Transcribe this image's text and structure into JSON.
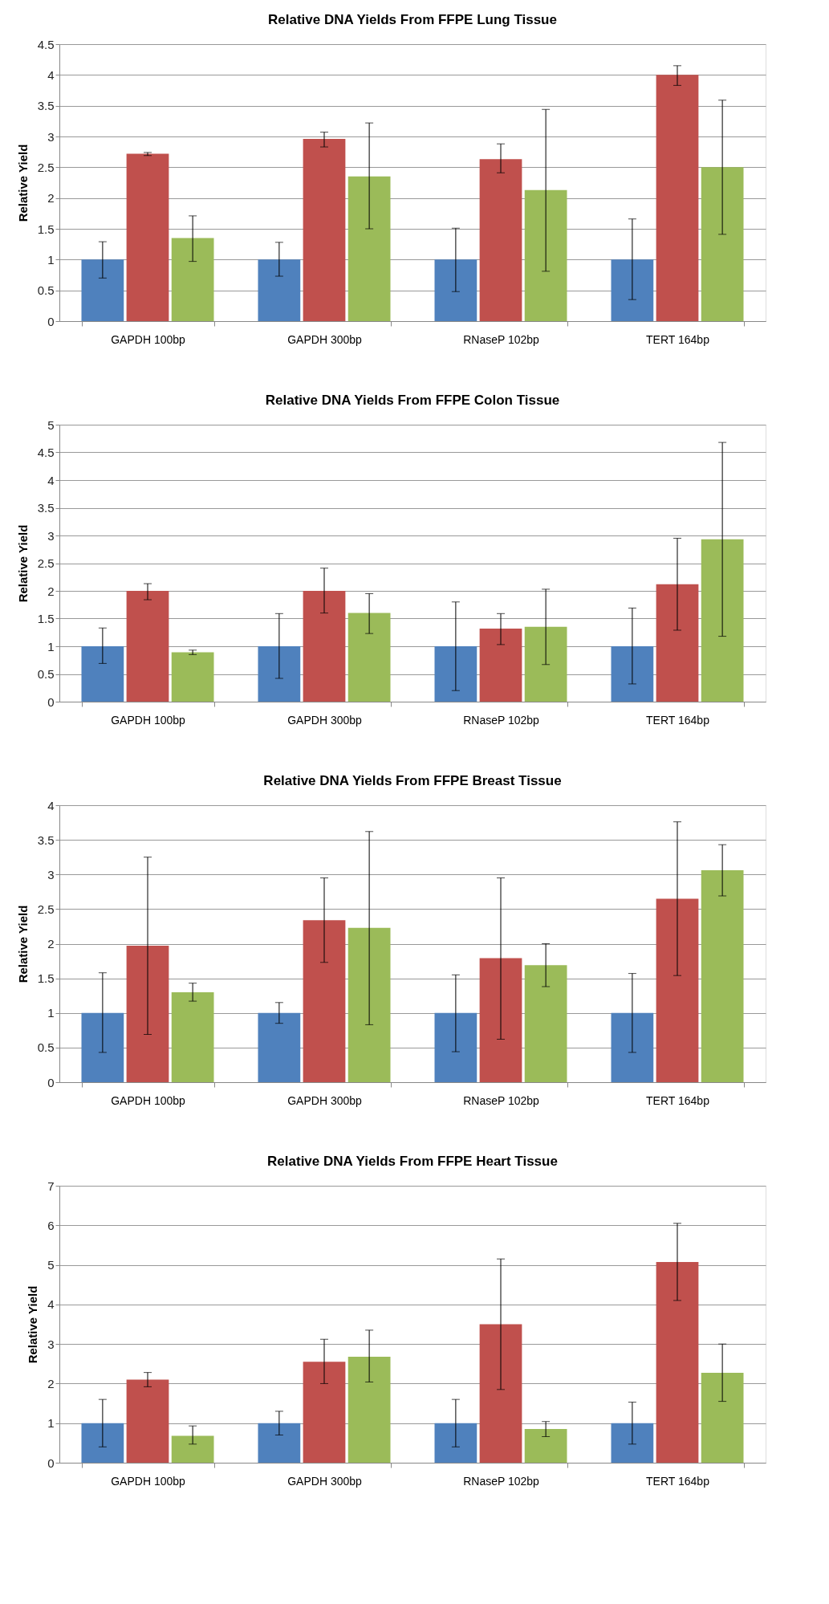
{
  "chart_data": [
    {
      "type": "bar",
      "title": "Relative DNA Yields From FFPE Lung Tissue",
      "ylabel": "Relative Yield",
      "categories": [
        "GAPDH 100bp",
        "GAPDH 300bp",
        "RNaseP 102bp",
        "TERT 164bp"
      ],
      "ylim": [
        0,
        4.5
      ],
      "yticks": [
        0,
        0.5,
        1,
        1.5,
        2,
        2.5,
        3,
        3.5,
        4,
        4.5
      ],
      "grid": "y",
      "series": [
        {
          "color": "#4f81bd",
          "values": [
            1,
            1,
            1,
            1
          ],
          "errors": [
            [
              0.7,
              1.29
            ],
            [
              0.73,
              1.28
            ],
            [
              0.48,
              1.51
            ],
            [
              0.35,
              1.66
            ]
          ]
        },
        {
          "color": "#c0504d",
          "values": [
            2.72,
            2.96,
            2.63,
            4.0
          ],
          "errors": [
            [
              2.69,
              2.74
            ],
            [
              2.83,
              3.07
            ],
            [
              2.41,
              2.88
            ],
            [
              3.83,
              4.15
            ]
          ]
        },
        {
          "color": "#9bbb59",
          "values": [
            1.35,
            2.35,
            2.13,
            2.5
          ],
          "errors": [
            [
              0.97,
              1.71
            ],
            [
              1.5,
              3.22
            ],
            [
              0.81,
              3.44
            ],
            [
              1.41,
              3.59
            ]
          ]
        }
      ]
    },
    {
      "type": "bar",
      "title": "Relative DNA Yields From FFPE Colon Tissue",
      "ylabel": "Relative Yield",
      "categories": [
        "GAPDH 100bp",
        "GAPDH 300bp",
        "RNaseP 102bp",
        "TERT 164bp"
      ],
      "ylim": [
        0,
        5
      ],
      "yticks": [
        0,
        0.5,
        1,
        1.5,
        2,
        2.5,
        3,
        3.5,
        4,
        4.5,
        5
      ],
      "grid": "y",
      "series": [
        {
          "color": "#4f81bd",
          "values": [
            1,
            1,
            1,
            1
          ],
          "errors": [
            [
              0.69,
              1.33
            ],
            [
              0.42,
              1.59
            ],
            [
              0.2,
              1.8
            ],
            [
              0.32,
              1.69
            ]
          ]
        },
        {
          "color": "#c0504d",
          "values": [
            2.0,
            2.0,
            1.32,
            2.12
          ],
          "errors": [
            [
              1.84,
              2.13
            ],
            [
              1.6,
              2.41
            ],
            [
              1.03,
              1.59
            ],
            [
              1.29,
              2.95
            ]
          ]
        },
        {
          "color": "#9bbb59",
          "values": [
            0.89,
            1.6,
            1.35,
            2.93
          ],
          "errors": [
            [
              0.85,
              0.93
            ],
            [
              1.23,
              1.95
            ],
            [
              0.67,
              2.03
            ],
            [
              1.18,
              4.68
            ]
          ]
        }
      ]
    },
    {
      "type": "bar",
      "title": "Relative DNA Yields From FFPE Breast Tissue",
      "ylabel": "Relative Yield",
      "categories": [
        "GAPDH 100bp",
        "GAPDH 300bp",
        "RNaseP 102bp",
        "TERT 164bp"
      ],
      "ylim": [
        0,
        4
      ],
      "yticks": [
        0,
        0.5,
        1,
        1.5,
        2,
        2.5,
        3,
        3.5,
        4
      ],
      "grid": "y",
      "series": [
        {
          "color": "#4f81bd",
          "values": [
            1,
            1,
            1,
            1
          ],
          "errors": [
            [
              0.43,
              1.58
            ],
            [
              0.85,
              1.15
            ],
            [
              0.44,
              1.55
            ],
            [
              0.43,
              1.57
            ]
          ]
        },
        {
          "color": "#c0504d",
          "values": [
            1.97,
            2.34,
            1.79,
            2.65
          ],
          "errors": [
            [
              0.69,
              3.25
            ],
            [
              1.73,
              2.95
            ],
            [
              0.62,
              2.95
            ],
            [
              1.54,
              3.76
            ]
          ]
        },
        {
          "color": "#9bbb59",
          "values": [
            1.3,
            2.23,
            1.69,
            3.06
          ],
          "errors": [
            [
              1.17,
              1.43
            ],
            [
              0.83,
              3.62
            ],
            [
              1.38,
              2.0
            ],
            [
              2.69,
              3.43
            ]
          ]
        }
      ]
    },
    {
      "type": "bar",
      "title": "Relative DNA Yields From FFPE Heart Tissue",
      "ylabel": "Relative Yield",
      "categories": [
        "GAPDH 100bp",
        "GAPDH 300bp",
        "RNaseP 102bp",
        "TERT 164bp"
      ],
      "ylim": [
        0,
        7
      ],
      "yticks": [
        0,
        1,
        2,
        3,
        4,
        5,
        6,
        7
      ],
      "grid": "y",
      "series": [
        {
          "color": "#4f81bd",
          "values": [
            1,
            1,
            1,
            1
          ],
          "errors": [
            [
              0.4,
              1.6
            ],
            [
              0.7,
              1.3
            ],
            [
              0.4,
              1.6
            ],
            [
              0.47,
              1.53
            ]
          ]
        },
        {
          "color": "#c0504d",
          "values": [
            2.1,
            2.55,
            3.5,
            5.07
          ],
          "errors": [
            [
              1.92,
              2.28
            ],
            [
              2.0,
              3.12
            ],
            [
              1.85,
              5.15
            ],
            [
              4.1,
              6.05
            ]
          ]
        },
        {
          "color": "#9bbb59",
          "values": [
            0.68,
            2.68,
            0.85,
            2.27
          ],
          "errors": [
            [
              0.47,
              0.93
            ],
            [
              2.04,
              3.35
            ],
            [
              0.66,
              1.04
            ],
            [
              1.55,
              3.0
            ]
          ]
        }
      ]
    }
  ]
}
